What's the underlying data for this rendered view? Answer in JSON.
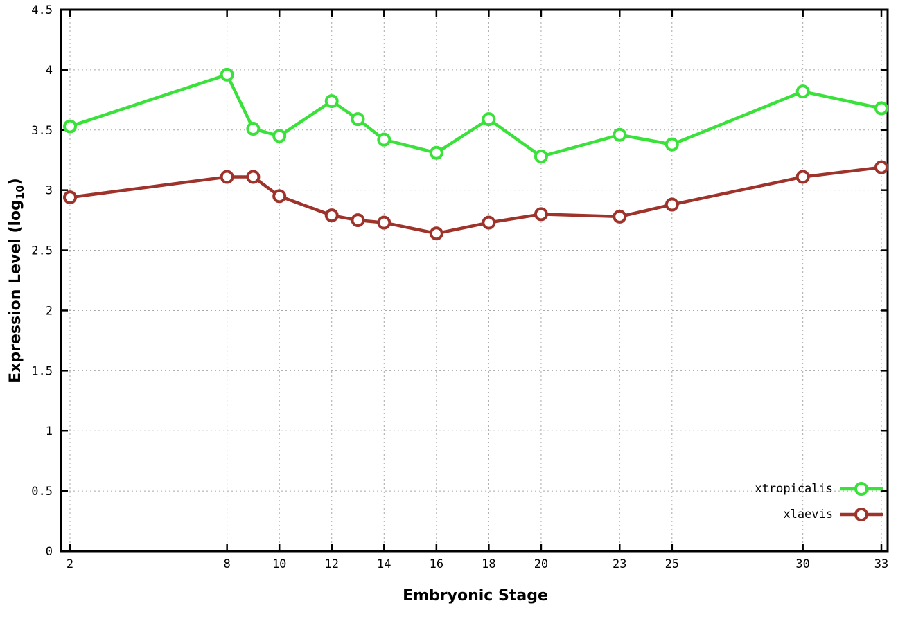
{
  "chart_data": {
    "type": "line",
    "x": [
      2,
      8,
      9,
      10,
      12,
      13,
      14,
      16,
      18,
      20,
      23,
      25,
      30,
      33
    ],
    "series": [
      {
        "name": "xtropicalis",
        "color": "#3ae13a",
        "marker": "circle-open",
        "values": [
          3.53,
          3.96,
          3.51,
          3.45,
          3.74,
          3.59,
          3.42,
          3.31,
          3.59,
          3.28,
          3.46,
          3.38,
          3.82,
          3.68
        ]
      },
      {
        "name": "xlaevis",
        "color": "#9e332b",
        "marker": "circle-open",
        "values": [
          2.94,
          3.11,
          3.11,
          2.95,
          2.79,
          2.75,
          2.73,
          2.64,
          2.73,
          2.8,
          2.78,
          2.88,
          3.11,
          3.19
        ]
      }
    ],
    "title": "",
    "xlabel": "Embryonic Stage",
    "ylabel_prefix": "Expression Level (log",
    "ylabel_sub": "10",
    "ylabel_suffix": ")",
    "xlim": [
      2,
      33
    ],
    "ylim": [
      0,
      4.5
    ],
    "xticks": {
      "values": [
        2,
        8,
        10,
        12,
        14,
        16,
        18,
        20,
        23,
        25,
        30,
        33
      ],
      "labels": [
        "2",
        "8",
        "10",
        "12",
        "14",
        "16",
        "18",
        "20",
        "23",
        "25",
        "30",
        "33"
      ]
    },
    "yticks": {
      "values": [
        0,
        0.5,
        1,
        1.5,
        2,
        2.5,
        3,
        3.5,
        4,
        4.5
      ],
      "labels": [
        "0",
        "0.5",
        "1",
        "1.5",
        "2",
        "2.5",
        "3",
        "3.5",
        "4",
        "4.5"
      ]
    },
    "grid": true,
    "legend_position": "bottom-right",
    "background": "#ffffff",
    "border_color": "#000000",
    "grid_color": "#a8a8a8"
  }
}
